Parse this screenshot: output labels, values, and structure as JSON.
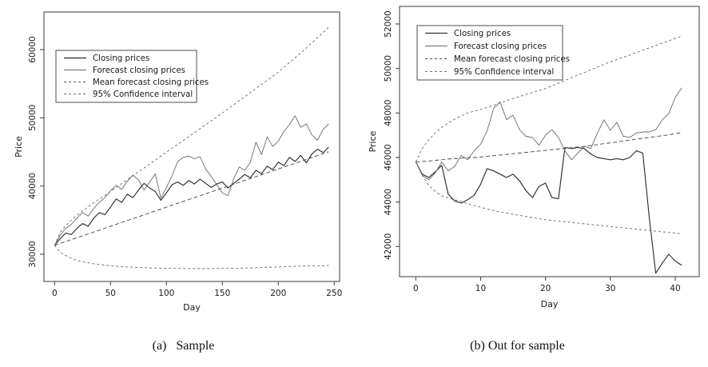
{
  "figure": {
    "captions": {
      "a": "(a)   Sample",
      "b": "(b) Out for sample"
    }
  },
  "colors": {
    "line_dark": "#2e2e2e",
    "line_gray": "#6b6b6b",
    "dash_mean": "#4d4d4d",
    "dash_ci": "#6e6e6e",
    "axis": "#3a3a3a",
    "text": "#1a1a1a",
    "background": "#ffffff"
  },
  "chart_data": [
    {
      "id": "sample",
      "type": "line",
      "caption": "(a)   Sample",
      "xlabel": "Day",
      "ylabel": "Price",
      "xlim": [
        0,
        250
      ],
      "ylim": [
        27900,
        63300
      ],
      "xticks": [
        0,
        50,
        100,
        150,
        200,
        250
      ],
      "yticks": [
        30000,
        40000,
        50000,
        60000
      ],
      "grid": false,
      "legend": {
        "position": "top-left",
        "entries": [
          "Closing prices",
          "Forecast closing prices",
          "Mean forecast closing prices",
          "95% Confidence interval"
        ]
      },
      "x": [
        0,
        5,
        10,
        15,
        20,
        25,
        30,
        35,
        40,
        45,
        50,
        55,
        60,
        65,
        70,
        75,
        80,
        85,
        90,
        95,
        100,
        105,
        110,
        115,
        120,
        125,
        130,
        135,
        140,
        145,
        150,
        155,
        160,
        165,
        170,
        175,
        180,
        185,
        190,
        195,
        200,
        205,
        210,
        215,
        220,
        225,
        230,
        235,
        240,
        245
      ],
      "series": [
        {
          "name": "Closing prices",
          "role": "closing",
          "values": [
            31300,
            32300,
            33100,
            32900,
            33800,
            34500,
            34100,
            35300,
            36100,
            35800,
            36900,
            38100,
            37600,
            38800,
            38300,
            39400,
            40400,
            39700,
            39200,
            37900,
            39000,
            40200,
            40600,
            40100,
            40800,
            40300,
            41000,
            40400,
            39800,
            40300,
            40600,
            39700,
            40400,
            41000,
            41700,
            41200,
            42300,
            41800,
            42900,
            42400,
            43500,
            43000,
            44200,
            43600,
            44500,
            43400,
            44700,
            45400,
            44900,
            45700
          ]
        },
        {
          "name": "Forecast closing prices",
          "role": "forecast",
          "values": [
            31300,
            32800,
            33800,
            34400,
            35300,
            36100,
            35600,
            36700,
            37600,
            38300,
            39300,
            40100,
            39500,
            40700,
            41600,
            40900,
            39400,
            40600,
            41800,
            38200,
            39800,
            41500,
            43600,
            44200,
            44400,
            44000,
            44300,
            42500,
            41400,
            40200,
            39000,
            38600,
            41000,
            42800,
            42300,
            43500,
            46400,
            44600,
            47200,
            45800,
            46600,
            48000,
            49000,
            50300,
            48600,
            49100,
            47500,
            46700,
            48300,
            49100
          ]
        },
        {
          "name": "Mean forecast closing prices",
          "role": "mean",
          "values": [
            31300,
            31580,
            31860,
            32140,
            32420,
            32700,
            32980,
            33260,
            33540,
            33820,
            34100,
            34380,
            34660,
            34940,
            35220,
            35500,
            35780,
            36060,
            36340,
            36620,
            36900,
            37180,
            37460,
            37740,
            38020,
            38300,
            38580,
            38860,
            39140,
            39420,
            39700,
            39980,
            40260,
            40540,
            40820,
            41100,
            41380,
            41660,
            41940,
            42220,
            42500,
            42780,
            43060,
            43340,
            43620,
            43900,
            44180,
            44460,
            44740,
            45020
          ]
        },
        {
          "name": "95% Confidence interval (upper)",
          "role": "ci-upper",
          "values": [
            31300,
            33200,
            34200,
            35000,
            35700,
            36350,
            36950,
            37550,
            38100,
            38650,
            39200,
            39780,
            40350,
            40930,
            41500,
            42080,
            42650,
            43230,
            43800,
            44380,
            44950,
            45530,
            46100,
            46680,
            47250,
            47830,
            48400,
            48980,
            49550,
            50130,
            50700,
            51300,
            51900,
            52500,
            53100,
            53700,
            54300,
            54900,
            55500,
            56100,
            56700,
            57400,
            58100,
            58800,
            59500,
            60250,
            61000,
            61750,
            62500,
            63300
          ]
        },
        {
          "name": "95% Confidence interval (lower)",
          "role": "ci-lower",
          "values": [
            31300,
            30300,
            29800,
            29400,
            29100,
            28900,
            28750,
            28600,
            28500,
            28400,
            28300,
            28250,
            28200,
            28150,
            28100,
            28060,
            28030,
            28000,
            27980,
            27960,
            27940,
            27930,
            27920,
            27910,
            27900,
            27900,
            27900,
            27900,
            27900,
            27910,
            27920,
            27930,
            27940,
            27960,
            27980,
            28000,
            28020,
            28050,
            28080,
            28110,
            28140,
            28170,
            28200,
            28230,
            28260,
            28280,
            28300,
            28320,
            28340,
            28360
          ]
        }
      ]
    },
    {
      "id": "out-of-sample",
      "type": "line",
      "caption": "(b) Out for sample",
      "xlabel": "Day",
      "ylabel": "Price",
      "xlim": [
        0,
        41
      ],
      "ylim": [
        40800,
        51450
      ],
      "xticks": [
        0,
        10,
        20,
        30,
        40
      ],
      "yticks": [
        42000,
        44000,
        46000,
        48000,
        50000,
        52000
      ],
      "grid": false,
      "legend": {
        "position": "top-left",
        "entries": [
          "Closing prices",
          "Forecast closing prices",
          "Mean forecast closing prices",
          "95% Confidence interval"
        ]
      },
      "x": [
        0,
        1,
        2,
        3,
        4,
        5,
        6,
        7,
        8,
        9,
        10,
        11,
        12,
        13,
        14,
        15,
        16,
        17,
        18,
        19,
        20,
        21,
        22,
        23,
        24,
        25,
        26,
        27,
        28,
        29,
        30,
        31,
        32,
        33,
        34,
        35,
        36,
        37,
        38,
        39,
        40,
        41
      ],
      "series": [
        {
          "name": "Closing prices",
          "role": "closing",
          "values": [
            45800,
            45250,
            45100,
            45350,
            45650,
            44350,
            44050,
            43950,
            44100,
            44300,
            44800,
            45500,
            45400,
            45250,
            45100,
            45250,
            44950,
            44500,
            44200,
            44700,
            44850,
            44200,
            44150,
            46450,
            46400,
            46450,
            46400,
            46150,
            46000,
            45950,
            45900,
            45950,
            45900,
            46000,
            46300,
            46200,
            43300,
            40800,
            41250,
            41650,
            41350,
            41150
          ]
        },
        {
          "name": "Forecast closing prices",
          "role": "forecast",
          "values": [
            45800,
            45200,
            45000,
            45300,
            45800,
            45400,
            45600,
            46100,
            45900,
            46300,
            46600,
            47200,
            48200,
            48500,
            47700,
            47900,
            47250,
            46950,
            46900,
            46550,
            47000,
            47250,
            46900,
            46300,
            45900,
            46200,
            46500,
            46400,
            47100,
            47690,
            47220,
            47580,
            46950,
            46900,
            47100,
            47150,
            47150,
            47250,
            47690,
            47980,
            48700,
            49130
          ]
        },
        {
          "name": "Mean forecast closing prices",
          "role": "mean",
          "values": [
            45800,
            45820,
            45840,
            45870,
            45900,
            45930,
            45950,
            45970,
            45990,
            46000,
            46020,
            46050,
            46080,
            46110,
            46140,
            46170,
            46200,
            46230,
            46260,
            46290,
            46320,
            46350,
            46380,
            46410,
            46440,
            46470,
            46500,
            46540,
            46580,
            46620,
            46660,
            46700,
            46740,
            46780,
            46820,
            46860,
            46900,
            46940,
            46980,
            47020,
            47070,
            47120
          ]
        },
        {
          "name": "95% Confidence interval (upper)",
          "role": "ci-upper",
          "values": [
            45800,
            46400,
            46800,
            47100,
            47350,
            47550,
            47720,
            47870,
            48000,
            48080,
            48150,
            48250,
            48350,
            48450,
            48550,
            48650,
            48740,
            48830,
            48920,
            49010,
            49100,
            49220,
            49340,
            49460,
            49580,
            49700,
            49820,
            49940,
            50060,
            50180,
            50300,
            50400,
            50500,
            50600,
            50710,
            50820,
            50930,
            51030,
            51140,
            51240,
            51350,
            51450
          ]
        },
        {
          "name": "95% Confidence interval (lower)",
          "role": "ci-lower",
          "values": [
            45800,
            45200,
            44740,
            44480,
            44280,
            44180,
            44100,
            44030,
            43930,
            43840,
            43760,
            43690,
            43620,
            43560,
            43500,
            43450,
            43400,
            43350,
            43300,
            43250,
            43200,
            43170,
            43140,
            43110,
            43080,
            43050,
            43020,
            42990,
            42960,
            42930,
            42900,
            42870,
            42840,
            42810,
            42780,
            42750,
            42720,
            42690,
            42660,
            42630,
            42600,
            42570
          ]
        }
      ]
    }
  ]
}
